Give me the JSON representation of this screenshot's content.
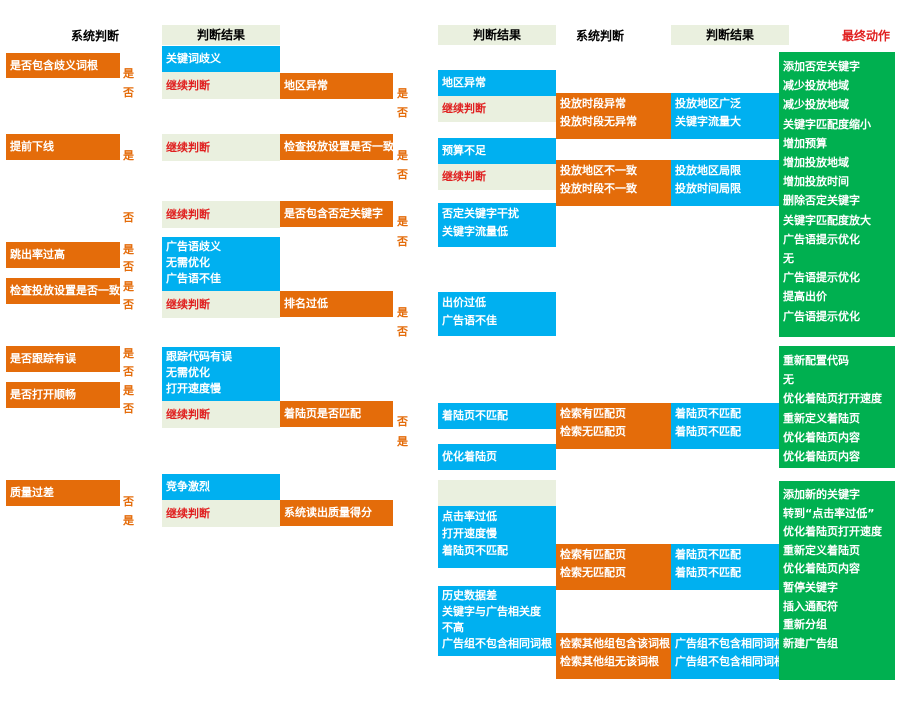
{
  "headers": {
    "col1": "系统判断",
    "col2": "判断结果",
    "col3": "判断结果",
    "col4": "系统判断",
    "col5": "判断结果",
    "col6": "最终动作"
  },
  "yes": "是",
  "no": "否",
  "left_checks": [
    "是否包含歧义词根",
    "提前下线",
    "跳出率过高",
    "检查投放设置是否一致",
    "是否跟踪有误",
    "是否打开顺畅",
    "质量过差"
  ],
  "continue": "继续判断",
  "mid_blue": {
    "keyword_ambiguity": "关键词歧义",
    "ad_group": [
      "广告语歧义",
      "无需优化",
      "广告语不佳"
    ],
    "tracking": [
      "跟踪代码有误",
      "无需优化",
      "打开速度慢"
    ],
    "competition": "竞争激烈"
  },
  "mid_orange": [
    "地区异常",
    "检查投放设置是否一致",
    "是否包含否定关键字",
    "排名过低",
    "着陆页是否匹配",
    "系统读出质量得分"
  ],
  "results": {
    "region": "地区异常",
    "budget": "预算不足",
    "negative": [
      "否定关键字干扰",
      "关键字流量低"
    ],
    "bid": [
      "出价过低",
      "广告语不佳"
    ],
    "landing": "着陆页不匹配",
    "optimize_landing": "优化着陆页",
    "ctr": [
      "点击率过低",
      "打开速度慢",
      "着陆页不匹配"
    ],
    "history": [
      "历史数据差",
      "关键字与广告相关度",
      "不高",
      "广告组不包含相同词根"
    ]
  },
  "sys2": {
    "time": [
      "投放时段异常",
      "投放时段无异常"
    ],
    "region": [
      "投放地区不一致",
      "投放时段不一致"
    ],
    "search1": [
      "检索有匹配页",
      "检索无匹配页"
    ],
    "search2": [
      "检索有匹配页",
      "检索无匹配页"
    ],
    "group": [
      "检索其他组包含该词根",
      "检索其他组无该词根"
    ]
  },
  "res2": {
    "region_traffic": [
      "投放地区广泛",
      "关键字流量大"
    ],
    "region_time": [
      "投放地区局限",
      "投放时间局限"
    ],
    "landing1": [
      "着陆页不匹配",
      "着陆页不匹配"
    ],
    "landing2": [
      "着陆页不匹配",
      "着陆页不匹配"
    ],
    "group": [
      "广告组不包含相同词根",
      "广告组不包含相同词根"
    ]
  },
  "actions": {
    "group1": [
      "添加否定关键字",
      "减少投放地域",
      "减少投放地域",
      "关键字匹配度缩小",
      "增加预算",
      "增加投放地域",
      "增加投放时间",
      "删除否定关键字",
      "关键字匹配度放大",
      "广告语提示优化",
      "无",
      "广告语提示优化",
      "提高出价",
      "广告语提示优化"
    ],
    "group2": [
      "重新配置代码",
      "无",
      "优化着陆页打开速度",
      "重新定义着陆页",
      "优化着陆页内容",
      "优化着陆页内容"
    ],
    "group3": [
      "添加新的关键字",
      "转到“点击率过低”",
      "优化着陆页打开速度",
      "重新定义着陆页",
      "优化着陆页内容",
      "暂停关键字",
      "插入通配符",
      "重新分组",
      "新建广告组"
    ]
  }
}
